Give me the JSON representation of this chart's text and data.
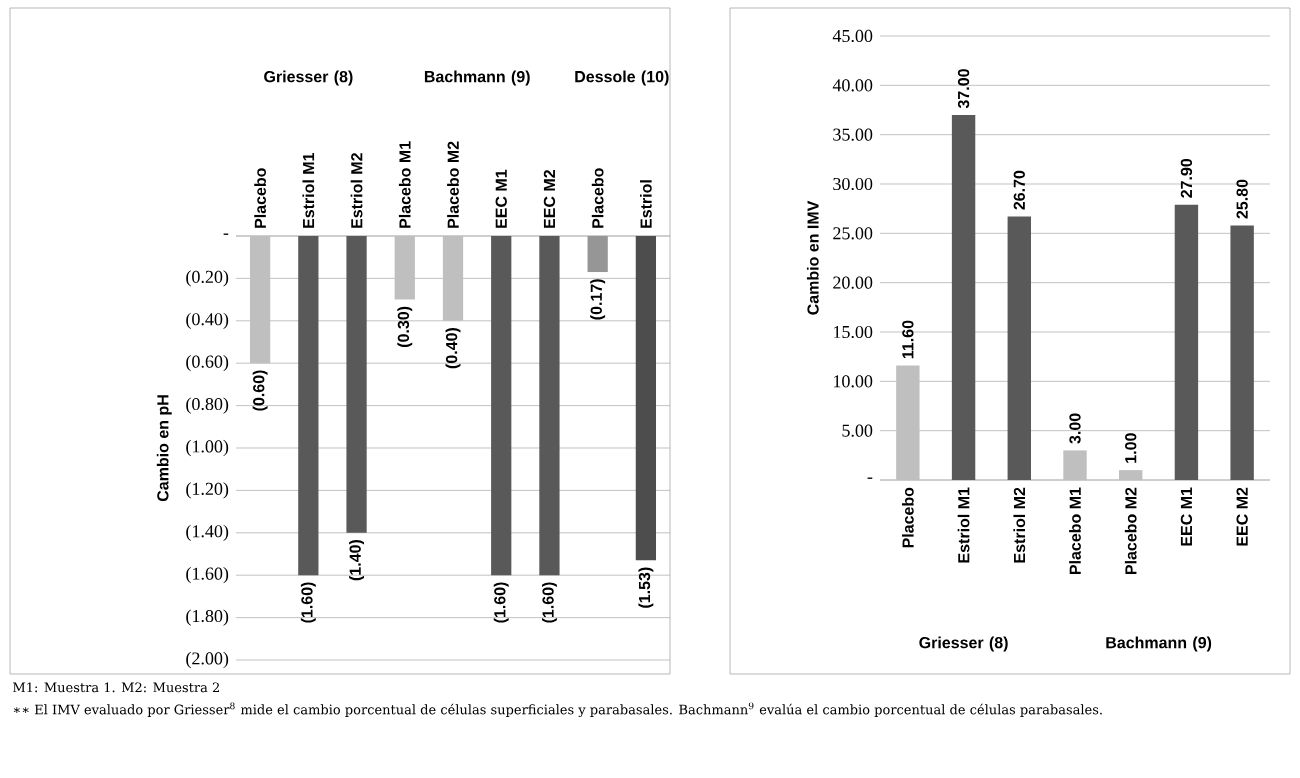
{
  "chart_data": [
    {
      "type": "bar",
      "ylabel": "Cambio en pH",
      "categories": [
        "Placebo",
        "Estriol M1",
        "Estriol M2",
        "Placebo M1",
        "Placebo M2",
        "EEC M1",
        "EEC M2",
        "Placebo",
        "Estriol"
      ],
      "values": [
        -0.6,
        -1.6,
        -1.4,
        -0.3,
        -0.4,
        -1.6,
        -1.6,
        -0.17,
        -1.53
      ],
      "colors": [
        "#bfbfbf",
        "#595959",
        "#595959",
        "#bfbfbf",
        "#bfbfbf",
        "#595959",
        "#595959",
        "#969696",
        "#4d4d4d"
      ],
      "value_labels": [
        "(0.60)",
        "(1.60)",
        "(1.40)",
        "(0.30)",
        "(0.40)",
        "(1.60)",
        "(1.60)",
        "(0.17)",
        "(1.53)"
      ],
      "ylim": [
        -2,
        0
      ],
      "yticks": [
        {
          "value": 0,
          "label": "-"
        },
        {
          "value": -0.2,
          "label": "(0.20)"
        },
        {
          "value": -0.4,
          "label": "(0.40)"
        },
        {
          "value": -0.6,
          "label": "(0.60)"
        },
        {
          "value": -0.8,
          "label": "(0.80)"
        },
        {
          "value": -1.0,
          "label": "(1.00)"
        },
        {
          "value": -1.2,
          "label": "(1.20)"
        },
        {
          "value": -1.4,
          "label": "(1.40)"
        },
        {
          "value": -1.6,
          "label": "(1.60)"
        },
        {
          "value": -1.8,
          "label": "(1.80)"
        },
        {
          "value": -2.0,
          "label": "(2.00)"
        }
      ],
      "grid": "y",
      "annotations": [
        "Griesser (8)",
        "Bachmann (9)",
        "Dessole (10)",
        "M1:   Muestra 1. M2: Muestra 2",
        "∗∗   El IMV evaluado por Griesser$^{8}$ mide el cambio porcentual de células superficiales y parabasales. Bachmann$^{9}$ evalúa el cambio porcentual de células parabasales."
      ]
    },
    {
      "type": "bar",
      "ylabel": "Cambio en IMV",
      "categories": [
        "Placebo",
        "Estriol M1",
        "Estriol M2",
        "Placebo M1",
        "Placebo M2",
        "EEC M1",
        "EEC M2"
      ],
      "values": [
        11.6,
        37.0,
        26.7,
        3.0,
        1.0,
        27.9,
        25.8
      ],
      "colors": [
        "#bfbfbf",
        "#595959",
        "#595959",
        "#bfbfbf",
        "#bfbfbf",
        "#595959",
        "#595959"
      ],
      "value_labels": [
        "11.60",
        "37.00",
        "26.70",
        "3.00",
        "1.00",
        "27.90",
        "25.80"
      ],
      "ylim": [
        0,
        45
      ],
      "yticks": [
        {
          "value": 0,
          "label": "-"
        },
        {
          "value": 5,
          "label": "5.00"
        },
        {
          "value": 10,
          "label": "10.00"
        },
        {
          "value": 15,
          "label": "15.00"
        },
        {
          "value": 20,
          "label": "20.00"
        },
        {
          "value": 25,
          "label": "25.00"
        },
        {
          "value": 30,
          "label": "30.00"
        },
        {
          "value": 35,
          "label": "35.00"
        },
        {
          "value": 40,
          "label": "40.00"
        },
        {
          "value": 45,
          "label": "45.00"
        }
      ],
      "grid": "y",
      "annotations": [
        "Griesser (8)",
        "Bachmann (9)"
      ]
    }
  ]
}
